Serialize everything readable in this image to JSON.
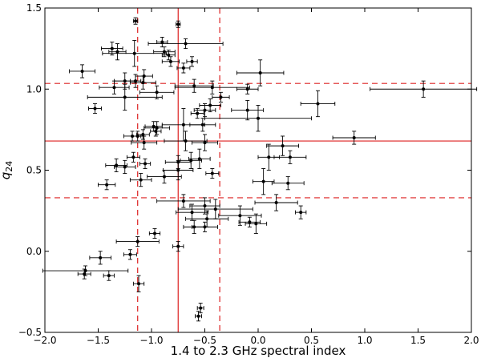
{
  "chart_data": {
    "type": "scatter",
    "title": "",
    "xlabel": "1.4 to 2.3 GHz spectral index",
    "ylabel_main": "q",
    "ylabel_sub": "24",
    "xlim": [
      -2.0,
      2.0
    ],
    "ylim": [
      -0.5,
      1.5
    ],
    "xticks": [
      -2.0,
      -1.5,
      -1.0,
      -0.5,
      0.0,
      0.5,
      1.0,
      1.5,
      2.0
    ],
    "yticks": [
      -0.5,
      0.0,
      0.5,
      1.0,
      1.5
    ],
    "xtick_labels": [
      "−2.0",
      "−1.5",
      "−1.0",
      "−0.5",
      "0.0",
      "0.5",
      "1.0",
      "1.5",
      "2.0"
    ],
    "ytick_labels": [
      "−0.5",
      "0.0",
      "0.5",
      "1.0",
      "1.5"
    ],
    "marker_color": "#000000",
    "line_color": "#dd2222",
    "reference_lines": [
      {
        "orientation": "horizontal",
        "value": 0.68,
        "style": "solid"
      },
      {
        "orientation": "horizontal",
        "value": 1.035,
        "style": "dashed"
      },
      {
        "orientation": "horizontal",
        "value": 0.33,
        "style": "dashed"
      },
      {
        "orientation": "vertical",
        "value": -0.75,
        "style": "solid"
      },
      {
        "orientation": "vertical",
        "value": -1.13,
        "style": "dashed"
      },
      {
        "orientation": "vertical",
        "value": -0.36,
        "style": "dashed"
      }
    ],
    "points": [
      {
        "x": -1.15,
        "y": 1.42,
        "xerr": 0.02,
        "yerr": 0.02
      },
      {
        "x": -0.75,
        "y": 1.4,
        "xerr": 0.02,
        "yerr": 0.02
      },
      {
        "x": -0.9,
        "y": 1.29,
        "xerr": 0.05,
        "yerr": 0.03
      },
      {
        "x": -0.68,
        "y": 1.28,
        "xerr": 0.35,
        "yerr": 0.03
      },
      {
        "x": -1.37,
        "y": 1.25,
        "xerr": 0.1,
        "yerr": 0.04
      },
      {
        "x": -1.32,
        "y": 1.23,
        "xerr": 0.08,
        "yerr": 0.05
      },
      {
        "x": -1.16,
        "y": 1.22,
        "xerr": 0.3,
        "yerr": 0.08
      },
      {
        "x": -0.88,
        "y": 1.23,
        "xerr": 0.1,
        "yerr": 0.03
      },
      {
        "x": -0.84,
        "y": 1.21,
        "xerr": 0.06,
        "yerr": 0.03
      },
      {
        "x": -0.62,
        "y": 1.17,
        "xerr": 0.05,
        "yerr": 0.03
      },
      {
        "x": -0.82,
        "y": 1.17,
        "xerr": 0.08,
        "yerr": 0.03
      },
      {
        "x": -0.7,
        "y": 1.13,
        "xerr": 0.06,
        "yerr": 0.03
      },
      {
        "x": -1.65,
        "y": 1.11,
        "xerr": 0.12,
        "yerr": 0.04
      },
      {
        "x": 0.02,
        "y": 1.1,
        "xerr": 0.22,
        "yerr": 0.08
      },
      {
        "x": -1.07,
        "y": 1.08,
        "xerr": 0.08,
        "yerr": 0.04
      },
      {
        "x": -1.25,
        "y": 1.05,
        "xerr": 0.1,
        "yerr": 0.05
      },
      {
        "x": -1.15,
        "y": 1.05,
        "xerr": 0.05,
        "yerr": 0.04
      },
      {
        "x": -1.08,
        "y": 1.04,
        "xerr": 0.12,
        "yerr": 0.04
      },
      {
        "x": -1.35,
        "y": 1.01,
        "xerr": 0.14,
        "yerr": 0.04
      },
      {
        "x": -0.6,
        "y": 1.02,
        "xerr": 0.18,
        "yerr": 0.04
      },
      {
        "x": -0.43,
        "y": 1.01,
        "xerr": 0.35,
        "yerr": 0.04
      },
      {
        "x": -0.1,
        "y": 1.0,
        "xerr": 0.1,
        "yerr": 0.03
      },
      {
        "x": 1.55,
        "y": 1.0,
        "xerr": 0.5,
        "yerr": 0.05
      },
      {
        "x": -0.95,
        "y": 0.98,
        "xerr": 0.16,
        "yerr": 0.04
      },
      {
        "x": -1.25,
        "y": 0.95,
        "xerr": 0.35,
        "yerr": 0.08
      },
      {
        "x": -0.35,
        "y": 0.95,
        "xerr": 0.08,
        "yerr": 0.03
      },
      {
        "x": -0.45,
        "y": 0.9,
        "xerr": 0.1,
        "yerr": 0.04
      },
      {
        "x": 0.56,
        "y": 0.91,
        "xerr": 0.16,
        "yerr": 0.08
      },
      {
        "x": -1.53,
        "y": 0.88,
        "xerr": 0.06,
        "yerr": 0.03
      },
      {
        "x": -0.5,
        "y": 0.87,
        "xerr": 0.1,
        "yerr": 0.04
      },
      {
        "x": -0.1,
        "y": 0.87,
        "xerr": 0.15,
        "yerr": 0.06
      },
      {
        "x": -0.57,
        "y": 0.85,
        "xerr": 0.06,
        "yerr": 0.03
      },
      {
        "x": 0.0,
        "y": 0.82,
        "xerr": 0.5,
        "yerr": 0.08
      },
      {
        "x": -0.7,
        "y": 0.78,
        "xerr": 0.2,
        "yerr": 0.1
      },
      {
        "x": -0.52,
        "y": 0.78,
        "xerr": 0.12,
        "yerr": 0.04
      },
      {
        "x": -0.98,
        "y": 0.77,
        "xerr": 0.08,
        "yerr": 0.03
      },
      {
        "x": -0.95,
        "y": 0.76,
        "xerr": 0.12,
        "yerr": 0.04
      },
      {
        "x": -1.08,
        "y": 0.72,
        "xerr": 0.06,
        "yerr": 0.03
      },
      {
        "x": -0.96,
        "y": 0.74,
        "xerr": 0.05,
        "yerr": 0.03
      },
      {
        "x": -1.18,
        "y": 0.71,
        "xerr": 0.08,
        "yerr": 0.03
      },
      {
        "x": -1.13,
        "y": 0.71,
        "xerr": 0.05,
        "yerr": 0.03
      },
      {
        "x": 0.9,
        "y": 0.7,
        "xerr": 0.2,
        "yerr": 0.04
      },
      {
        "x": -0.68,
        "y": 0.68,
        "xerr": 0.2,
        "yerr": 0.06
      },
      {
        "x": -1.07,
        "y": 0.67,
        "xerr": 0.12,
        "yerr": 0.04
      },
      {
        "x": -0.5,
        "y": 0.67,
        "xerr": 0.12,
        "yerr": 0.05
      },
      {
        "x": 0.23,
        "y": 0.65,
        "xerr": 0.15,
        "yerr": 0.06
      },
      {
        "x": 0.1,
        "y": 0.58,
        "xerr": 0.1,
        "yerr": 0.08
      },
      {
        "x": 0.3,
        "y": 0.58,
        "xerr": 0.15,
        "yerr": 0.04
      },
      {
        "x": -1.17,
        "y": 0.58,
        "xerr": 0.06,
        "yerr": 0.03
      },
      {
        "x": -0.55,
        "y": 0.57,
        "xerr": 0.1,
        "yerr": 0.06
      },
      {
        "x": -0.63,
        "y": 0.56,
        "xerr": 0.1,
        "yerr": 0.05
      },
      {
        "x": -0.75,
        "y": 0.55,
        "xerr": 0.12,
        "yerr": 0.04
      },
      {
        "x": -1.06,
        "y": 0.54,
        "xerr": 0.05,
        "yerr": 0.03
      },
      {
        "x": -1.33,
        "y": 0.53,
        "xerr": 0.1,
        "yerr": 0.04
      },
      {
        "x": -1.25,
        "y": 0.52,
        "xerr": 0.1,
        "yerr": 0.04
      },
      {
        "x": -0.75,
        "y": 0.5,
        "xerr": 0.14,
        "yerr": 0.06
      },
      {
        "x": -0.43,
        "y": 0.48,
        "xerr": 0.06,
        "yerr": 0.03
      },
      {
        "x": -0.88,
        "y": 0.46,
        "xerr": 0.16,
        "yerr": 0.04
      },
      {
        "x": -1.1,
        "y": 0.44,
        "xerr": 0.1,
        "yerr": 0.04
      },
      {
        "x": 0.05,
        "y": 0.43,
        "xerr": 0.1,
        "yerr": 0.08
      },
      {
        "x": 0.28,
        "y": 0.42,
        "xerr": 0.15,
        "yerr": 0.04
      },
      {
        "x": -1.42,
        "y": 0.41,
        "xerr": 0.08,
        "yerr": 0.03
      },
      {
        "x": -0.7,
        "y": 0.31,
        "xerr": 0.25,
        "yerr": 0.04
      },
      {
        "x": 0.17,
        "y": 0.3,
        "xerr": 0.2,
        "yerr": 0.05
      },
      {
        "x": -0.5,
        "y": 0.28,
        "xerr": 0.14,
        "yerr": 0.05
      },
      {
        "x": -0.4,
        "y": 0.26,
        "xerr": 0.35,
        "yerr": 0.06
      },
      {
        "x": -0.62,
        "y": 0.24,
        "xerr": 0.15,
        "yerr": 0.05
      },
      {
        "x": 0.4,
        "y": 0.24,
        "xerr": 0.05,
        "yerr": 0.04
      },
      {
        "x": -0.17,
        "y": 0.22,
        "xerr": 0.2,
        "yerr": 0.06
      },
      {
        "x": -0.48,
        "y": 0.2,
        "xerr": 0.2,
        "yerr": 0.05
      },
      {
        "x": -0.08,
        "y": 0.18,
        "xerr": 0.1,
        "yerr": 0.03
      },
      {
        "x": -0.02,
        "y": 0.17,
        "xerr": 0.1,
        "yerr": 0.06
      },
      {
        "x": -0.6,
        "y": 0.15,
        "xerr": 0.1,
        "yerr": 0.04
      },
      {
        "x": -0.5,
        "y": 0.15,
        "xerr": 0.12,
        "yerr": 0.03
      },
      {
        "x": -0.97,
        "y": 0.11,
        "xerr": 0.05,
        "yerr": 0.03
      },
      {
        "x": -1.13,
        "y": 0.06,
        "xerr": 0.2,
        "yerr": 0.03
      },
      {
        "x": -0.75,
        "y": 0.03,
        "xerr": 0.05,
        "yerr": 0.03
      },
      {
        "x": -1.2,
        "y": -0.02,
        "xerr": 0.06,
        "yerr": 0.03
      },
      {
        "x": -1.48,
        "y": -0.04,
        "xerr": 0.1,
        "yerr": 0.04
      },
      {
        "x": -1.62,
        "y": -0.12,
        "xerr": 0.4,
        "yerr": 0.03
      },
      {
        "x": -1.63,
        "y": -0.14,
        "xerr": 0.06,
        "yerr": 0.03
      },
      {
        "x": -1.4,
        "y": -0.15,
        "xerr": 0.05,
        "yerr": 0.03
      },
      {
        "x": -1.12,
        "y": -0.2,
        "xerr": 0.05,
        "yerr": 0.05
      },
      {
        "x": -0.54,
        "y": -0.35,
        "xerr": 0.03,
        "yerr": 0.03
      },
      {
        "x": -0.56,
        "y": -0.4,
        "xerr": 0.03,
        "yerr": 0.03
      }
    ]
  }
}
